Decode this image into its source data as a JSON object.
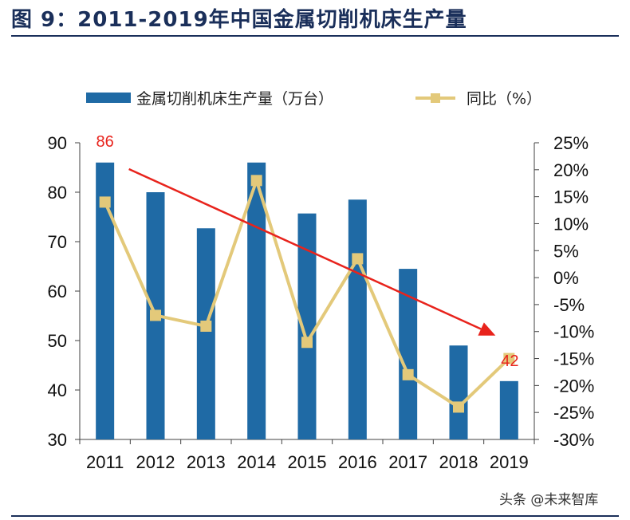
{
  "header": {
    "title": "图 9：2011-2019年中国金属切削机床生产量"
  },
  "footer": {
    "watermark": "头条 @未来智库"
  },
  "colors": {
    "bar": "#1f6aa5",
    "line": "#e3c97a",
    "trend_arrow": "#e8231c",
    "annotation": "#e8231c",
    "axis": "#404040",
    "rule": "#1a2f5a"
  },
  "chart_data": {
    "type": "bar+line",
    "categories": [
      "2011",
      "2012",
      "2013",
      "2014",
      "2015",
      "2016",
      "2017",
      "2018",
      "2019"
    ],
    "series": [
      {
        "name": "金属切削机床生产量（万台）",
        "type": "bar",
        "axis": "left",
        "values": [
          86,
          80,
          72.7,
          86,
          75.7,
          78.5,
          64.5,
          49,
          41.8
        ]
      },
      {
        "name": "同比（%）",
        "type": "line",
        "axis": "right",
        "values": [
          14,
          -7,
          -9,
          18,
          -12,
          3.5,
          -18,
          -24,
          -15
        ]
      }
    ],
    "y_left": {
      "min": 30,
      "max": 90,
      "ticks": [
        30,
        40,
        50,
        60,
        70,
        80,
        90
      ]
    },
    "y_right": {
      "min": -30,
      "max": 25,
      "ticks": [
        -30,
        -25,
        -20,
        -15,
        -10,
        -5,
        0,
        5,
        10,
        15,
        20,
        25
      ],
      "tick_labels": [
        "-30%",
        "-25%",
        "-20%",
        "-15%",
        "-10%",
        "-5%",
        "0%",
        "5%",
        "10%",
        "15%",
        "20%",
        "25%"
      ]
    },
    "legend": {
      "position": "top",
      "entries": [
        "金属切削机床生产量（万台）",
        "同比（%）"
      ]
    },
    "annotations": [
      {
        "text": "86",
        "category": "2011"
      },
      {
        "text": "42",
        "category": "2019"
      }
    ],
    "trend_arrow": {
      "from_category": "2011",
      "from_value": 85,
      "to_category": "2019",
      "to_value": 51
    }
  }
}
